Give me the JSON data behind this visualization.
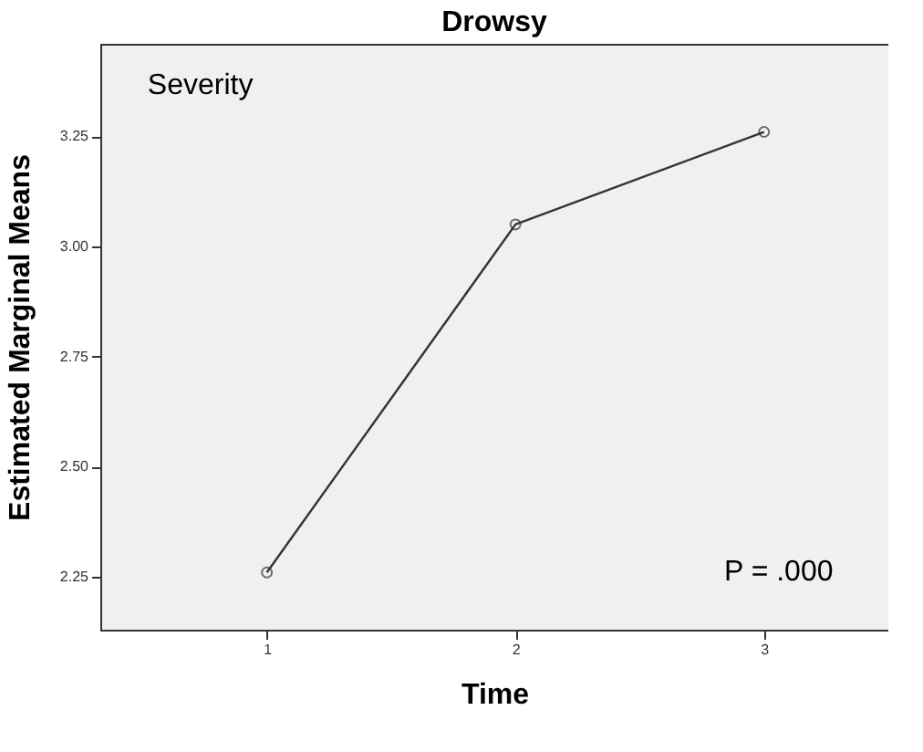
{
  "chart_data": {
    "type": "line",
    "title": "Drowsy",
    "xlabel": "Time",
    "ylabel": "Estimated Marginal Means",
    "x": [
      1,
      2,
      3
    ],
    "series": [
      {
        "color": "#333333",
        "values": [
          2.26,
          3.05,
          3.26
        ]
      }
    ],
    "xlim": [
      0.33,
      3.5
    ],
    "xticks": [
      1,
      2,
      3
    ],
    "ylim": [
      2.13,
      3.46
    ],
    "yticks": [
      {
        "value": 2.25,
        "label": "2.25"
      },
      {
        "value": 2.5,
        "label": "2.50"
      },
      {
        "value": 2.75,
        "label": "2.75"
      },
      {
        "value": 3.0,
        "label": "3.00"
      },
      {
        "value": 3.25,
        "label": "3.25"
      }
    ],
    "annotations": [
      "Severity",
      "P = .000"
    ],
    "marker": "circle",
    "line_style": "solid",
    "grid": false
  }
}
